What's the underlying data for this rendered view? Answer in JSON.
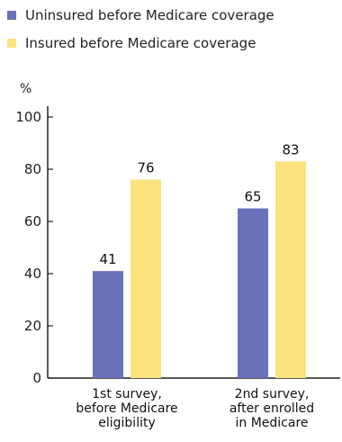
{
  "chart_data": {
    "type": "bar",
    "ylabel": "%",
    "ylim": [
      0,
      100
    ],
    "yticks": [
      0,
      20,
      40,
      60,
      80,
      100
    ],
    "categories": [
      [
        "1st survey,",
        "before Medicare",
        "eligibility"
      ],
      [
        "2nd survey,",
        "after enrolled",
        "in Medicare"
      ]
    ],
    "series": [
      {
        "name": "Uninsured before Medicare coverage",
        "color": "#6b72b9",
        "values": [
          41,
          65
        ]
      },
      {
        "name": "Insured before Medicare coverage",
        "color": "#fbe27c",
        "values": [
          76,
          83
        ]
      }
    ],
    "legend_position": "top-left",
    "grid": false
  }
}
